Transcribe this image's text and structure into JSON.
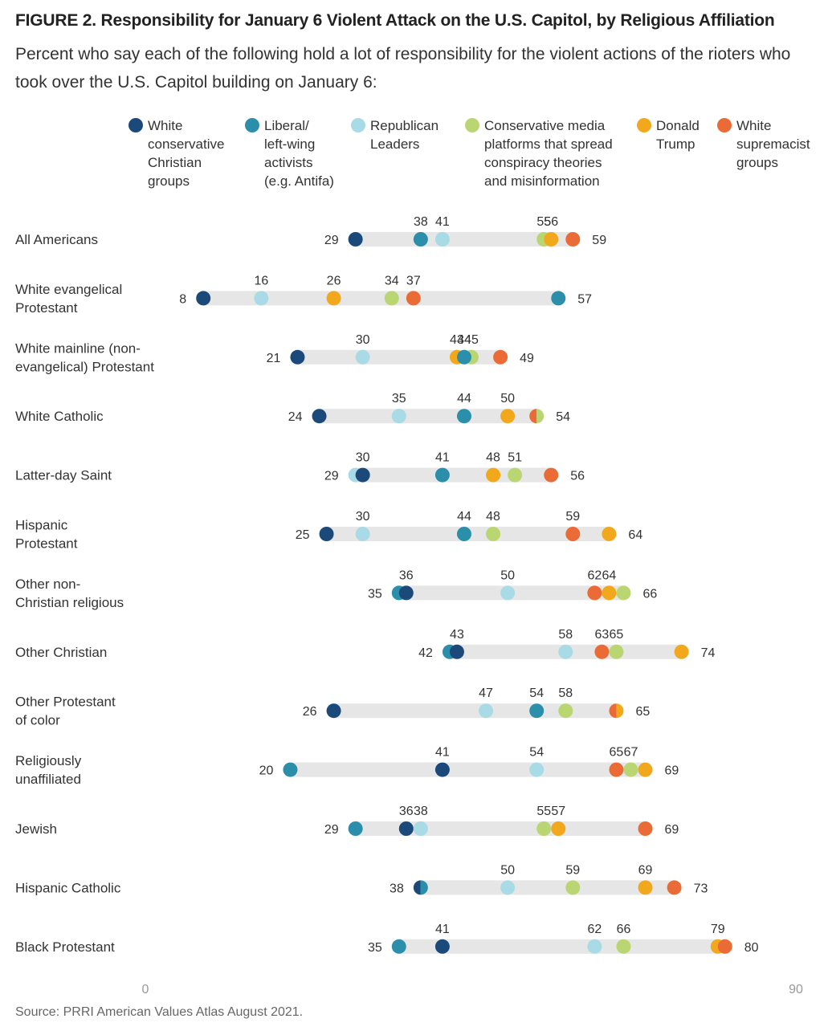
{
  "figure": {
    "label": "FIGURE 2.",
    "title": "FIGURE 2.  Responsibility for January 6 Violent Attack on the U.S. Capitol, by Religious Affiliation",
    "subtitle": "Percent who say each of the following hold a lot of responsibility for the violent actions of the rioters who took over the U.S. Capitol building on January 6:",
    "source": "Source: PRRI American Values Atlas August 2021."
  },
  "chart_data": {
    "type": "dot-range",
    "xlim": [
      0,
      90
    ],
    "x_ticks": [
      "0",
      "90"
    ],
    "grid": false,
    "legend_position": "top",
    "series": [
      {
        "key": "wccg",
        "name": "White conservative Christian groups",
        "lines": [
          "White",
          "conservative",
          "Christian",
          "groups"
        ],
        "color": "#1b4a7a"
      },
      {
        "key": "lib",
        "name": "Liberal/ left-wing activists (e.g. Antifa)",
        "lines": [
          "Liberal/",
          "left-wing",
          "activists",
          "(e.g. Antifa)"
        ],
        "color": "#2b8fab"
      },
      {
        "key": "rep",
        "name": "Republican Leaders",
        "lines": [
          "Republican",
          "Leaders"
        ],
        "color": "#a8dbe5"
      },
      {
        "key": "cons",
        "name": "Conservative media platforms that spread conspiracy theories and misinformation",
        "lines": [
          "Conservative media",
          "platforms that spread",
          "conspiracy theories",
          "and misinformation"
        ],
        "color": "#b9d672"
      },
      {
        "key": "trump",
        "name": "Donald Trump",
        "lines": [
          "Donald",
          "Trump"
        ],
        "color": "#f2a81d"
      },
      {
        "key": "ws",
        "name": "White supremacist groups",
        "lines": [
          "White",
          "supremacist",
          "groups"
        ],
        "color": "#ea6b35"
      }
    ],
    "rows": [
      {
        "label": [
          "All Americans"
        ],
        "values": {
          "wccg": 29,
          "lib": 38,
          "rep": 41,
          "cons": 55,
          "trump": 56,
          "ws": 59
        },
        "order": [
          "wccg",
          "lib",
          "rep",
          "cons",
          "trump",
          "ws"
        ],
        "labels": [
          {
            "text": "29",
            "at": 29,
            "pos": "left"
          },
          {
            "text": "38",
            "at": 38,
            "pos": "above"
          },
          {
            "text": "41",
            "at": 41,
            "pos": "above"
          },
          {
            "text": "55",
            "at": 55,
            "pos": "above"
          },
          {
            "text": "56",
            "at": 56,
            "pos": "above"
          },
          {
            "text": "59",
            "at": 59,
            "pos": "right"
          }
        ]
      },
      {
        "label": [
          "White evangelical",
          "Protestant"
        ],
        "values": {
          "wccg": 8,
          "rep": 16,
          "trump": 26,
          "cons": 34,
          "ws": 37,
          "lib": 57
        },
        "order": [
          "wccg",
          "rep",
          "trump",
          "cons",
          "ws",
          "lib"
        ],
        "labels": [
          {
            "text": "8",
            "at": 8,
            "pos": "left"
          },
          {
            "text": "16",
            "at": 16,
            "pos": "above"
          },
          {
            "text": "26",
            "at": 26,
            "pos": "above"
          },
          {
            "text": "34",
            "at": 34,
            "pos": "above"
          },
          {
            "text": "37",
            "at": 37,
            "pos": "above"
          },
          {
            "text": "57",
            "at": 57,
            "pos": "right"
          }
        ]
      },
      {
        "label": [
          "White mainline (non-",
          "evangelical) Protestant"
        ],
        "values": {
          "wccg": 21,
          "rep": 30,
          "trump": 43,
          "cons": 45,
          "lib": 44,
          "ws": 49
        },
        "order": [
          "wccg",
          "rep",
          "trump",
          "cons",
          "lib",
          "ws"
        ],
        "labels": [
          {
            "text": "21",
            "at": 21,
            "pos": "left"
          },
          {
            "text": "30",
            "at": 30,
            "pos": "above"
          },
          {
            "text": "43",
            "at": 43,
            "pos": "above"
          },
          {
            "text": "44",
            "at": 44,
            "pos": "above"
          },
          {
            "text": "45",
            "at": 45,
            "pos": "above"
          },
          {
            "text": "49",
            "at": 49,
            "pos": "right"
          }
        ]
      },
      {
        "label": [
          "White Catholic"
        ],
        "values": {
          "wccg": 24,
          "rep": 35,
          "lib": 44,
          "trump": 50,
          "cons": 54,
          "ws": 54
        },
        "order": [
          "wccg",
          "rep",
          "lib",
          "trump",
          "cons",
          "ws"
        ],
        "split": {
          "at": 54,
          "left": "ws",
          "right": "cons"
        },
        "labels": [
          {
            "text": "24",
            "at": 24,
            "pos": "left"
          },
          {
            "text": "35",
            "at": 35,
            "pos": "above"
          },
          {
            "text": "44",
            "at": 44,
            "pos": "above"
          },
          {
            "text": "50",
            "at": 50,
            "pos": "above"
          },
          {
            "text": "54",
            "at": 54,
            "pos": "right"
          }
        ]
      },
      {
        "label": [
          "Latter-day Saint"
        ],
        "values": {
          "rep": 29,
          "wccg": 30,
          "lib": 41,
          "trump": 48,
          "cons": 51,
          "ws": 56
        },
        "order": [
          "rep",
          "wccg",
          "lib",
          "trump",
          "cons",
          "ws"
        ],
        "labels": [
          {
            "text": "29",
            "at": 29,
            "pos": "left"
          },
          {
            "text": "30",
            "at": 30,
            "pos": "above"
          },
          {
            "text": "41",
            "at": 41,
            "pos": "above"
          },
          {
            "text": "48",
            "at": 48,
            "pos": "above"
          },
          {
            "text": "51",
            "at": 51,
            "pos": "above"
          },
          {
            "text": "56",
            "at": 56,
            "pos": "right"
          }
        ]
      },
      {
        "label": [
          "Hispanic",
          "Protestant"
        ],
        "values": {
          "wccg": 25,
          "rep": 30,
          "lib": 44,
          "cons": 48,
          "ws": 59,
          "trump": 64
        },
        "order": [
          "wccg",
          "rep",
          "lib",
          "cons",
          "ws",
          "trump"
        ],
        "labels": [
          {
            "text": "25",
            "at": 25,
            "pos": "left"
          },
          {
            "text": "30",
            "at": 30,
            "pos": "above"
          },
          {
            "text": "44",
            "at": 44,
            "pos": "above"
          },
          {
            "text": "48",
            "at": 48,
            "pos": "above"
          },
          {
            "text": "59",
            "at": 59,
            "pos": "above"
          },
          {
            "text": "64",
            "at": 64,
            "pos": "right"
          }
        ]
      },
      {
        "label": [
          "Other non-",
          "Christian religious"
        ],
        "values": {
          "lib": 35,
          "wccg": 36,
          "rep": 50,
          "ws": 62,
          "trump": 64,
          "cons": 66
        },
        "order": [
          "lib",
          "wccg",
          "rep",
          "ws",
          "trump",
          "cons"
        ],
        "labels": [
          {
            "text": "35",
            "at": 35,
            "pos": "left"
          },
          {
            "text": "36",
            "at": 36,
            "pos": "above"
          },
          {
            "text": "50",
            "at": 50,
            "pos": "above"
          },
          {
            "text": "62",
            "at": 62,
            "pos": "above"
          },
          {
            "text": "64",
            "at": 64,
            "pos": "above"
          },
          {
            "text": "66",
            "at": 66,
            "pos": "right"
          }
        ]
      },
      {
        "label": [
          "Other Christian"
        ],
        "values": {
          "lib": 42,
          "wccg": 43,
          "rep": 58,
          "ws": 63,
          "cons": 65,
          "trump": 74
        },
        "order": [
          "lib",
          "wccg",
          "rep",
          "ws",
          "cons",
          "trump"
        ],
        "labels": [
          {
            "text": "42",
            "at": 42,
            "pos": "left"
          },
          {
            "text": "43",
            "at": 43,
            "pos": "above"
          },
          {
            "text": "58",
            "at": 58,
            "pos": "above"
          },
          {
            "text": "63",
            "at": 63,
            "pos": "above"
          },
          {
            "text": "65",
            "at": 65,
            "pos": "above"
          },
          {
            "text": "74",
            "at": 74,
            "pos": "right"
          }
        ]
      },
      {
        "label": [
          "Other Protestant",
          "of color"
        ],
        "values": {
          "wccg": 26,
          "rep": 47,
          "lib": 54,
          "cons": 58,
          "ws": 65,
          "trump": 65
        },
        "order": [
          "wccg",
          "rep",
          "lib",
          "cons",
          "ws",
          "trump"
        ],
        "split": {
          "at": 65,
          "left": "ws",
          "right": "trump"
        },
        "labels": [
          {
            "text": "26",
            "at": 26,
            "pos": "left"
          },
          {
            "text": "47",
            "at": 47,
            "pos": "above"
          },
          {
            "text": "54",
            "at": 54,
            "pos": "above"
          },
          {
            "text": "58",
            "at": 58,
            "pos": "above"
          },
          {
            "text": "65",
            "at": 65,
            "pos": "right"
          }
        ]
      },
      {
        "label": [
          "Religiously",
          "unaffiliated"
        ],
        "values": {
          "lib": 20,
          "wccg": 41,
          "rep": 54,
          "ws": 65,
          "cons": 67,
          "trump": 69
        },
        "order": [
          "lib",
          "wccg",
          "rep",
          "ws",
          "cons",
          "trump"
        ],
        "labels": [
          {
            "text": "20",
            "at": 20,
            "pos": "left"
          },
          {
            "text": "41",
            "at": 41,
            "pos": "above"
          },
          {
            "text": "54",
            "at": 54,
            "pos": "above"
          },
          {
            "text": "65",
            "at": 65,
            "pos": "above"
          },
          {
            "text": "67",
            "at": 67,
            "pos": "above"
          },
          {
            "text": "69",
            "at": 69,
            "pos": "right"
          }
        ]
      },
      {
        "label": [
          "Jewish"
        ],
        "values": {
          "lib": 29,
          "wccg": 36,
          "rep": 38,
          "cons": 55,
          "trump": 57,
          "ws": 69
        },
        "order": [
          "lib",
          "wccg",
          "rep",
          "cons",
          "trump",
          "ws"
        ],
        "labels": [
          {
            "text": "29",
            "at": 29,
            "pos": "left"
          },
          {
            "text": "36",
            "at": 36,
            "pos": "above"
          },
          {
            "text": "38",
            "at": 38,
            "pos": "above"
          },
          {
            "text": "55",
            "at": 55,
            "pos": "above"
          },
          {
            "text": "57",
            "at": 57,
            "pos": "above"
          },
          {
            "text": "69",
            "at": 69,
            "pos": "right"
          }
        ]
      },
      {
        "label": [
          "Hispanic Catholic"
        ],
        "values": {
          "wccg": 38,
          "lib": 38,
          "rep": 50,
          "cons": 59,
          "trump": 69,
          "ws": 73
        },
        "order": [
          "wccg",
          "lib",
          "rep",
          "cons",
          "trump",
          "ws"
        ],
        "split": {
          "at": 38,
          "left": "wccg",
          "right": "lib"
        },
        "labels": [
          {
            "text": "38",
            "at": 38,
            "pos": "left"
          },
          {
            "text": "50",
            "at": 50,
            "pos": "above"
          },
          {
            "text": "59",
            "at": 59,
            "pos": "above"
          },
          {
            "text": "69",
            "at": 69,
            "pos": "above"
          },
          {
            "text": "73",
            "at": 73,
            "pos": "right"
          }
        ]
      },
      {
        "label": [
          "Black Protestant"
        ],
        "values": {
          "lib": 35,
          "wccg": 41,
          "rep": 62,
          "cons": 66,
          "trump": 79,
          "ws": 80
        },
        "order": [
          "lib",
          "wccg",
          "rep",
          "cons",
          "trump",
          "ws"
        ],
        "labels": [
          {
            "text": "35",
            "at": 35,
            "pos": "left"
          },
          {
            "text": "41",
            "at": 41,
            "pos": "above"
          },
          {
            "text": "62",
            "at": 62,
            "pos": "above"
          },
          {
            "text": "66",
            "at": 66,
            "pos": "above"
          },
          {
            "text": "79",
            "at": 79,
            "pos": "above"
          },
          {
            "text": "80",
            "at": 80,
            "pos": "right"
          }
        ]
      }
    ]
  }
}
